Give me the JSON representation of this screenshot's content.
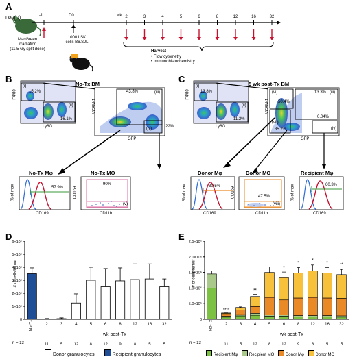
{
  "panels": {
    "a": "A",
    "b": "B",
    "c": "C",
    "d": "D",
    "e": "E"
  },
  "timeline": {
    "day_label": "Day(D)",
    "mouse_label_1": "MacGreen",
    "mouse_label_2": "irradiation",
    "mouse_label_3": "(11.5 Gy split dose)",
    "minus1": "-1",
    "d0": "D0",
    "lsk_1": "1000 LSK",
    "lsk_2": "cells B6.SJL",
    "wk": "wk",
    "weeks": [
      "2",
      "3",
      "4",
      "5",
      "6",
      "8",
      "12",
      "16",
      "32"
    ],
    "harvest_title": "Harvest",
    "harvest_items": [
      "Flow cytometry",
      "Immunohistochemistry"
    ]
  },
  "panel_b": {
    "title": "No-Tx BM",
    "f4_80": "F4/80",
    "ly6g": "Ly6G",
    "vcam": "VCAM-1",
    "gfp": "GFP",
    "gate_i": "(i)",
    "gate_ii": "(ii)",
    "gate_iii": "(iii)",
    "gate_iv": "(iv)",
    "pct_i": "15.2%",
    "pct_ii": "16.1%",
    "pct_iii": "43.8%",
    "pct_iv": "22%",
    "hist1_title": "No-Tx Mφ",
    "hist1_pct": "57.9%",
    "hist2_title": "No-Tx MO",
    "hist2_pct": "90%",
    "gate_v": "(v)",
    "pct_of_max": "% of max",
    "cd169": "CD169",
    "cd11b": "CD11b"
  },
  "panel_c": {
    "title": "5 wk post-Tx BM",
    "pct_i": "13.8%",
    "pct_ii": "11.2%",
    "pct_iii": "13.3%",
    "pct_v": "50.4%",
    "pct_iv": "0.04%",
    "pct_vii": "35.2%",
    "gate_vi": "(vi)",
    "gate_vii": "(vii)",
    "gate_viii": "(viii)",
    "hist1_title": "Donor Mφ",
    "hist1_pct": "30.5%",
    "hist2_title": "Donor MO",
    "hist2_pct": "47.5%",
    "hist3_title": "Recipient Mφ",
    "hist3_pct": "60.3%"
  },
  "panel_d": {
    "ylabel": "# of cells/femur",
    "xlabel": "wk post-Tx",
    "n_label": "n = 13",
    "legend": [
      "Donor granulocytes",
      "Recipient granulocytes"
    ]
  },
  "panel_e": {
    "ylabel": "# of cells/femur",
    "xlabel": "wk post-Tx",
    "n_label": "n = 13",
    "legend": [
      "Recipient Mφ",
      "Recipient MO",
      "Donor Mφ",
      "Donor MO"
    ]
  },
  "chart_data": [
    {
      "type": "bar",
      "categories": [
        "No-Tx",
        "2",
        "3",
        "4",
        "5",
        "6",
        "8",
        "12",
        "16",
        "32"
      ],
      "n": [
        "13",
        "11",
        "5",
        "12",
        "8",
        "12",
        "9",
        "8",
        "5",
        "5"
      ],
      "ytick_labels": [
        "0",
        "1×10⁶",
        "2×10⁶",
        "3×10⁶",
        "4×10⁶",
        "5×10⁶",
        "6×10⁶"
      ],
      "ylim": [
        0,
        6000000
      ],
      "series": [
        {
          "name": "Donor granulocytes",
          "color": "#ffffff",
          "values": [
            0,
            30000,
            50000,
            1250000,
            3000000,
            2500000,
            2950000,
            3050000,
            3100000,
            2500000
          ],
          "err": [
            0,
            30000,
            60000,
            700000,
            1000000,
            1400000,
            1000000,
            1200000,
            1150000,
            600000
          ]
        },
        {
          "name": "Recipient granulocytes",
          "color": "#1f4e96",
          "values": [
            3500000,
            0,
            0,
            0,
            0,
            0,
            0,
            0,
            0,
            0
          ],
          "err": [
            450000,
            0,
            0,
            0,
            0,
            0,
            0,
            0,
            0,
            0
          ]
        }
      ]
    },
    {
      "type": "bar",
      "categories": [
        "No-Tx",
        "2",
        "3",
        "4",
        "5",
        "6",
        "8",
        "12",
        "16",
        "32"
      ],
      "n": [
        "13",
        "11",
        "5",
        "12",
        "8",
        "12",
        "9",
        "8",
        "5",
        "5"
      ],
      "ytick_labels": [
        "0",
        "5.0×10⁵",
        "1.0×10⁶",
        "1.5×10⁶",
        "2.0×10⁶",
        "2.5×10⁶"
      ],
      "ylim": [
        0,
        2500000
      ],
      "stars": [
        "",
        "****",
        "",
        "**",
        "",
        "*",
        "*",
        "*",
        "*",
        "**"
      ],
      "series": [
        {
          "name": "Recipient Mφ",
          "color": "#7cc142",
          "values": [
            1000000,
            70000,
            110000,
            130000,
            100000,
            100000,
            80000,
            80000,
            80000,
            70000
          ]
        },
        {
          "name": "Recipient MO",
          "color": "#a8c98a",
          "values": [
            450000,
            30000,
            40000,
            60000,
            40000,
            40000,
            40000,
            40000,
            40000,
            40000
          ]
        },
        {
          "name": "Donor Mφ",
          "color": "#e98a27",
          "values": [
            0,
            80000,
            150000,
            220000,
            560000,
            480000,
            560000,
            580000,
            560000,
            560000
          ]
        },
        {
          "name": "Donor MO",
          "color": "#f7c13b",
          "values": [
            0,
            20000,
            80000,
            320000,
            800000,
            730000,
            800000,
            850000,
            800000,
            760000
          ]
        }
      ]
    }
  ]
}
